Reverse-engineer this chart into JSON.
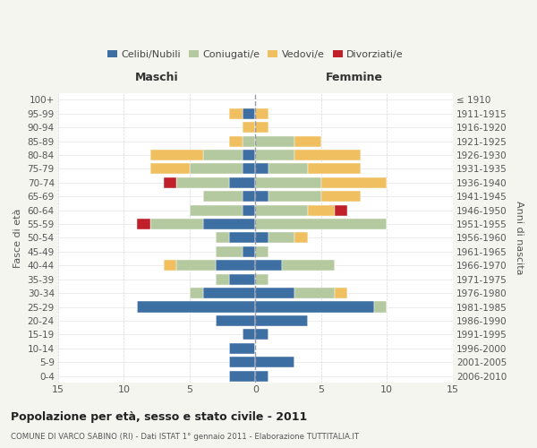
{
  "age_groups": [
    "0-4",
    "5-9",
    "10-14",
    "15-19",
    "20-24",
    "25-29",
    "30-34",
    "35-39",
    "40-44",
    "45-49",
    "50-54",
    "55-59",
    "60-64",
    "65-69",
    "70-74",
    "75-79",
    "80-84",
    "85-89",
    "90-94",
    "95-99",
    "100+"
  ],
  "birth_years": [
    "2006-2010",
    "2001-2005",
    "1996-2000",
    "1991-1995",
    "1986-1990",
    "1981-1985",
    "1976-1980",
    "1971-1975",
    "1966-1970",
    "1961-1965",
    "1956-1960",
    "1951-1955",
    "1946-1950",
    "1941-1945",
    "1936-1940",
    "1931-1935",
    "1926-1930",
    "1921-1925",
    "1916-1920",
    "1911-1915",
    "≤ 1910"
  ],
  "colors": {
    "celibi": "#3e6fa3",
    "coniugati": "#b5c9a0",
    "vedovi": "#f0c060",
    "divorziati": "#c0202a"
  },
  "maschi": {
    "celibi": [
      2,
      2,
      2,
      1,
      3,
      9,
      4,
      2,
      3,
      1,
      2,
      4,
      1,
      1,
      2,
      1,
      1,
      0,
      0,
      1,
      0
    ],
    "coniugati": [
      0,
      0,
      0,
      0,
      0,
      0,
      1,
      1,
      3,
      2,
      1,
      4,
      4,
      3,
      4,
      4,
      3,
      1,
      0,
      0,
      0
    ],
    "vedovi": [
      0,
      0,
      0,
      0,
      0,
      0,
      0,
      0,
      1,
      0,
      0,
      0,
      0,
      0,
      0,
      3,
      4,
      1,
      1,
      1,
      0
    ],
    "divorziati": [
      0,
      0,
      0,
      0,
      0,
      0,
      0,
      0,
      0,
      0,
      0,
      1,
      0,
      0,
      1,
      0,
      0,
      0,
      0,
      0,
      0
    ]
  },
  "femmine": {
    "celibi": [
      1,
      3,
      0,
      1,
      4,
      9,
      3,
      0,
      2,
      0,
      1,
      0,
      0,
      1,
      0,
      1,
      0,
      0,
      0,
      0,
      0
    ],
    "coniugati": [
      0,
      0,
      0,
      0,
      0,
      1,
      3,
      1,
      4,
      1,
      2,
      10,
      4,
      4,
      5,
      3,
      3,
      3,
      0,
      0,
      0
    ],
    "vedovi": [
      0,
      0,
      0,
      0,
      0,
      0,
      1,
      0,
      0,
      0,
      1,
      0,
      2,
      3,
      5,
      4,
      5,
      2,
      1,
      1,
      0
    ],
    "divorziati": [
      0,
      0,
      0,
      0,
      0,
      0,
      0,
      0,
      0,
      0,
      0,
      0,
      1,
      0,
      0,
      0,
      0,
      0,
      0,
      0,
      0
    ]
  },
  "xlim": 15,
  "title": "Popolazione per età, sesso e stato civile - 2011",
  "subtitle": "COMUNE DI VARCO SABINO (RI) - Dati ISTAT 1° gennaio 2011 - Elaborazione TUTTITALIA.IT",
  "ylabel_left": "Fasce di età",
  "ylabel_right": "Anni di nascita",
  "xlabel_left": "Maschi",
  "xlabel_right": "Femmine",
  "bg_color": "#f5f5f0",
  "plot_bg": "#ffffff"
}
